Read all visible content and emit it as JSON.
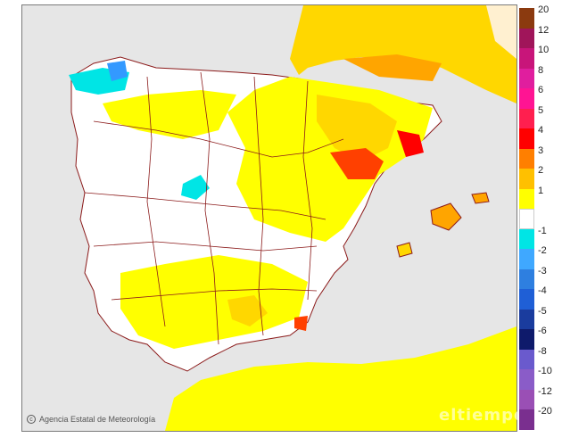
{
  "map": {
    "credit": "Agencia Estatal de Meteorología",
    "watermark": "eltiempo",
    "colors": {
      "sea": "#e6e6e6",
      "land_neutral": "#ffffff",
      "border": "#8b1a1a",
      "warm_1": "#ffff00",
      "warm_2": "#ffd700",
      "warm_3": "#ffa500",
      "warm_4": "#ff7f00",
      "warm_5": "#ff0000",
      "cool_1": "#00e5e5",
      "cool_2": "#3399ff",
      "cool_3": "#1f5fd6"
    }
  },
  "legend": {
    "items": [
      {
        "label": "20",
        "color": "#8b3a0f"
      },
      {
        "label": "12",
        "color": "#a0155a"
      },
      {
        "label": "10",
        "color": "#c8157a"
      },
      {
        "label": "8",
        "color": "#e01e9e"
      },
      {
        "label": "6",
        "color": "#ff1493"
      },
      {
        "label": "5",
        "color": "#ff1f4f"
      },
      {
        "label": "4",
        "color": "#ff0000"
      },
      {
        "label": "3",
        "color": "#ff7f00"
      },
      {
        "label": "2",
        "color": "#ffc000"
      },
      {
        "label": "1",
        "color": "#ffff00"
      },
      {
        "label": "",
        "color": "#ffffff"
      },
      {
        "label": "-1",
        "color": "#00e5e5"
      },
      {
        "label": "-2",
        "color": "#3fa8ff"
      },
      {
        "label": "-3",
        "color": "#2e7fe0"
      },
      {
        "label": "-4",
        "color": "#1f5fd6"
      },
      {
        "label": "-5",
        "color": "#1a3c9e"
      },
      {
        "label": "-6",
        "color": "#0e1a6b"
      },
      {
        "label": "-8",
        "color": "#6a5acd"
      },
      {
        "label": "-10",
        "color": "#8a5cc8"
      },
      {
        "label": "-12",
        "color": "#9a4fb5"
      },
      {
        "label": "-20",
        "color": "#7a2f8f"
      }
    ]
  }
}
